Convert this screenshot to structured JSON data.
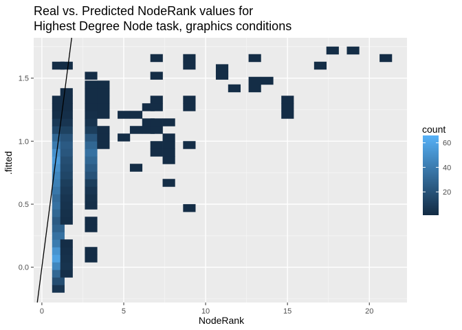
{
  "chart_data": {
    "type": "heatmap",
    "title": "Real vs. Predicted NodeRank values for\nHighest Degree Node task, graphics conditions",
    "xlabel": "NodeRank",
    "ylabel": ".fitted",
    "xlim": [
      -0.5,
      22.3
    ],
    "ylim": [
      -0.28,
      1.82
    ],
    "x_ticks": [
      0,
      5,
      10,
      15,
      20
    ],
    "x_minor_ticks": [
      2.5,
      7.5,
      12.5,
      17.5
    ],
    "y_ticks": [
      0.0,
      0.5,
      1.0,
      1.5
    ],
    "y_minor_ticks": [
      -0.25,
      0.25,
      0.75,
      1.25,
      1.75
    ],
    "grid": true,
    "bin_width": 0.75,
    "bin_height": 0.061,
    "legend": {
      "title": "count",
      "position": "right",
      "ticks": [
        20,
        40,
        60
      ],
      "range": [
        1,
        66
      ],
      "color_low": "#132b43",
      "color_high": "#56b1f7"
    },
    "reference_line": {
      "slope": 1,
      "intercept": 0
    },
    "tiles": [
      [
        1,
        -0.17,
        6
      ],
      [
        1,
        -0.11,
        18
      ],
      [
        1,
        -0.05,
        30
      ],
      [
        1,
        0.01,
        45
      ],
      [
        1,
        0.07,
        58
      ],
      [
        1,
        0.13,
        52
      ],
      [
        1,
        0.19,
        40
      ],
      [
        1,
        0.25,
        35
      ],
      [
        1,
        0.31,
        28
      ],
      [
        1,
        0.37,
        24
      ],
      [
        1,
        0.43,
        30
      ],
      [
        1,
        0.49,
        35
      ],
      [
        1,
        0.55,
        32
      ],
      [
        1,
        0.61,
        38
      ],
      [
        1,
        0.67,
        42
      ],
      [
        1,
        0.73,
        45
      ],
      [
        1,
        0.79,
        50
      ],
      [
        1,
        0.85,
        55
      ],
      [
        1,
        0.91,
        50
      ],
      [
        1,
        0.97,
        40
      ],
      [
        1,
        1.03,
        30
      ],
      [
        1,
        1.09,
        15
      ],
      [
        1,
        1.15,
        8
      ],
      [
        1,
        1.21,
        3
      ],
      [
        1,
        1.27,
        2
      ],
      [
        1,
        1.33,
        2
      ],
      [
        1,
        1.6,
        2
      ],
      [
        1.5,
        -0.05,
        3
      ],
      [
        1.5,
        0.01,
        5
      ],
      [
        1.5,
        0.07,
        4
      ],
      [
        1.5,
        0.13,
        3
      ],
      [
        1.5,
        0.19,
        2
      ],
      [
        1.5,
        0.37,
        3
      ],
      [
        1.5,
        0.43,
        4
      ],
      [
        1.5,
        0.49,
        5
      ],
      [
        1.5,
        0.55,
        6
      ],
      [
        1.5,
        0.61,
        8
      ],
      [
        1.5,
        0.67,
        10
      ],
      [
        1.5,
        0.73,
        14
      ],
      [
        1.5,
        0.79,
        16
      ],
      [
        1.5,
        0.85,
        18
      ],
      [
        1.5,
        0.91,
        22
      ],
      [
        1.5,
        0.97,
        24
      ],
      [
        1.5,
        1.03,
        20
      ],
      [
        1.5,
        1.09,
        12
      ],
      [
        1.5,
        1.15,
        6
      ],
      [
        1.5,
        1.21,
        3
      ],
      [
        1.5,
        1.27,
        2
      ],
      [
        1.5,
        1.33,
        2
      ],
      [
        1.5,
        1.39,
        2
      ],
      [
        1.5,
        1.6,
        2
      ],
      [
        3,
        0.07,
        2
      ],
      [
        3,
        0.13,
        2
      ],
      [
        3,
        0.31,
        2
      ],
      [
        3,
        0.37,
        2
      ],
      [
        3,
        0.49,
        3
      ],
      [
        3,
        0.55,
        4
      ],
      [
        3,
        0.61,
        6
      ],
      [
        3,
        0.67,
        10
      ],
      [
        3,
        0.73,
        20
      ],
      [
        3,
        0.79,
        25
      ],
      [
        3,
        0.85,
        30
      ],
      [
        3,
        0.91,
        35
      ],
      [
        3,
        0.97,
        30
      ],
      [
        3,
        1.03,
        22
      ],
      [
        3,
        1.09,
        10
      ],
      [
        3,
        1.15,
        5
      ],
      [
        3,
        1.21,
        3
      ],
      [
        3,
        1.27,
        2
      ],
      [
        3,
        1.33,
        2
      ],
      [
        3,
        1.39,
        2
      ],
      [
        3,
        1.45,
        2
      ],
      [
        3,
        1.52,
        2
      ],
      [
        3.75,
        0.97,
        2
      ],
      [
        3.75,
        1.03,
        2
      ],
      [
        3.75,
        1.09,
        2
      ],
      [
        3.75,
        1.21,
        2
      ],
      [
        3.75,
        1.27,
        2
      ],
      [
        3.75,
        1.33,
        2
      ],
      [
        3.75,
        1.39,
        2
      ],
      [
        3.75,
        1.45,
        2
      ],
      [
        5,
        1.03,
        2
      ],
      [
        5,
        1.21,
        2
      ],
      [
        5.75,
        1.09,
        2
      ],
      [
        5.75,
        1.21,
        2
      ],
      [
        5.75,
        0.79,
        2
      ],
      [
        6.5,
        1.09,
        2
      ],
      [
        6.5,
        1.15,
        2
      ],
      [
        6.5,
        1.27,
        2
      ],
      [
        7,
        0.91,
        2
      ],
      [
        7,
        0.97,
        2
      ],
      [
        7,
        1.09,
        2
      ],
      [
        7,
        1.15,
        2
      ],
      [
        7,
        1.27,
        2
      ],
      [
        7,
        1.33,
        2
      ],
      [
        7,
        1.52,
        2
      ],
      [
        7,
        1.66,
        2
      ],
      [
        7.75,
        0.85,
        2
      ],
      [
        7.75,
        0.91,
        2
      ],
      [
        7.75,
        0.97,
        2
      ],
      [
        7.75,
        1.03,
        2
      ],
      [
        7.75,
        1.15,
        2
      ],
      [
        7.75,
        0.67,
        2
      ],
      [
        9,
        0.97,
        2
      ],
      [
        9,
        1.27,
        2
      ],
      [
        9,
        1.33,
        2
      ],
      [
        9,
        1.6,
        2
      ],
      [
        9,
        1.66,
        2
      ],
      [
        9,
        0.47,
        2
      ],
      [
        11,
        1.52,
        2
      ],
      [
        11,
        1.58,
        2
      ],
      [
        11.75,
        1.42,
        2
      ],
      [
        13,
        1.42,
        2
      ],
      [
        13,
        1.48,
        2
      ],
      [
        13,
        1.66,
        2
      ],
      [
        13.75,
        1.48,
        2
      ],
      [
        15,
        1.21,
        2
      ],
      [
        15,
        1.27,
        2
      ],
      [
        15,
        1.33,
        2
      ],
      [
        17,
        1.6,
        2
      ],
      [
        17.75,
        1.72,
        2
      ],
      [
        19,
        1.72,
        2
      ],
      [
        21,
        1.66,
        2
      ]
    ]
  }
}
